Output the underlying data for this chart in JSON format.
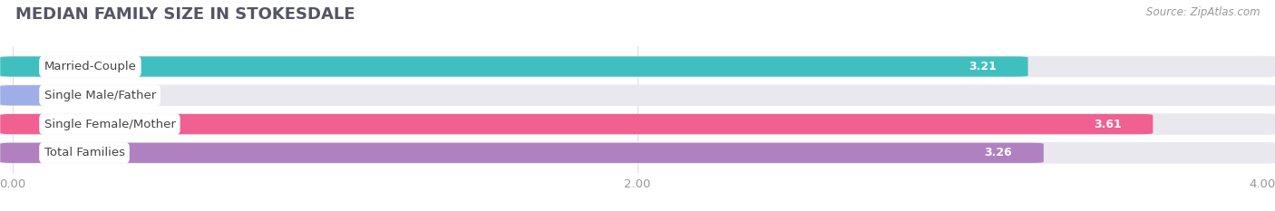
{
  "title": "MEDIAN FAMILY SIZE IN STOKESDALE",
  "source": "Source: ZipAtlas.com",
  "categories": [
    "Married-Couple",
    "Single Male/Father",
    "Single Female/Mother",
    "Total Families"
  ],
  "values": [
    3.21,
    0.0,
    3.61,
    3.26
  ],
  "bar_colors": [
    "#40bfbf",
    "#a0aee8",
    "#f06090",
    "#b080c0"
  ],
  "xlim": [
    0,
    4.0
  ],
  "xticks": [
    0.0,
    2.0,
    4.0
  ],
  "xtick_labels": [
    "0.00",
    "2.00",
    "4.00"
  ],
  "bar_height": 0.62,
  "track_color": "#e8e8ee",
  "background_color": "#ffffff",
  "title_fontsize": 13,
  "label_fontsize": 9.5,
  "value_fontsize": 9,
  "source_fontsize": 8.5,
  "title_color": "#555566",
  "source_color": "#999999",
  "tick_color": "#999999",
  "grid_color": "#dddddd",
  "label_text_color": "#444444"
}
